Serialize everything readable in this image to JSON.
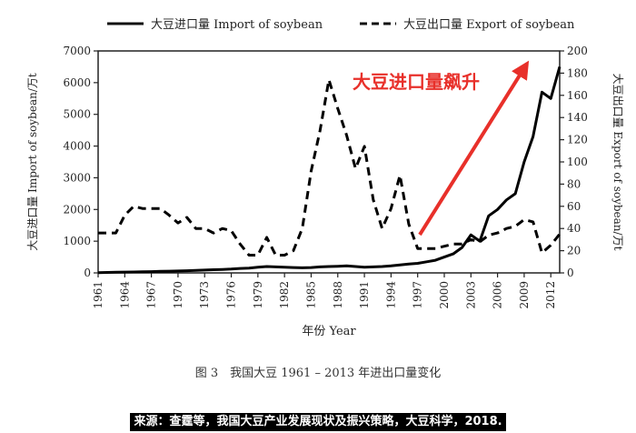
{
  "chart_data": {
    "type": "line",
    "title": "",
    "xlabel": "年份 Year",
    "ylabel_left": "大豆进口量 Import of soybean/万t",
    "ylabel_right": "大豆出口量 Export of soybean/万t",
    "ylim_left": [
      0,
      7000
    ],
    "ylim_right": [
      0,
      200
    ],
    "yticks_left": [
      0,
      1000,
      2000,
      3000,
      4000,
      5000,
      6000,
      7000
    ],
    "yticks_right": [
      0,
      20,
      40,
      60,
      80,
      100,
      120,
      140,
      160,
      180,
      200
    ],
    "xticks": [
      1961,
      1964,
      1967,
      1970,
      1973,
      1976,
      1979,
      1982,
      1985,
      1988,
      1991,
      1994,
      1997,
      2000,
      2003,
      2006,
      2009,
      2012
    ],
    "xlim": [
      1961,
      2013
    ],
    "legend_position": "top",
    "annotation": "大豆进口量飙升",
    "annotation_color": "#e8302a",
    "series": [
      {
        "name": "大豆进口量 Import of soybean",
        "axis": "left",
        "style": "solid",
        "x": [
          1961,
          1962,
          1963,
          1964,
          1965,
          1966,
          1967,
          1968,
          1969,
          1970,
          1971,
          1972,
          1973,
          1974,
          1975,
          1976,
          1977,
          1978,
          1979,
          1980,
          1981,
          1982,
          1983,
          1984,
          1985,
          1986,
          1987,
          1988,
          1989,
          1990,
          1991,
          1992,
          1993,
          1994,
          1995,
          1996,
          1997,
          1998,
          1999,
          2000,
          2001,
          2002,
          2003,
          2004,
          2005,
          2006,
          2007,
          2008,
          2009,
          2010,
          2011,
          2012,
          2013
        ],
        "values": [
          10,
          15,
          20,
          25,
          30,
          35,
          40,
          50,
          55,
          60,
          70,
          80,
          90,
          100,
          110,
          120,
          140,
          150,
          180,
          200,
          190,
          180,
          170,
          160,
          170,
          190,
          200,
          210,
          220,
          200,
          180,
          190,
          200,
          220,
          250,
          280,
          300,
          350,
          400,
          500,
          600,
          800,
          1200,
          1000,
          1800,
          2000,
          2300,
          2500,
          3500,
          4300,
          5700,
          5500,
          6500
        ]
      },
      {
        "name": "大豆出口量 Export of soybean",
        "axis": "right",
        "style": "dashed",
        "x": [
          1961,
          1962,
          1963,
          1964,
          1965,
          1966,
          1967,
          1968,
          1969,
          1970,
          1971,
          1972,
          1973,
          1974,
          1975,
          1976,
          1977,
          1978,
          1979,
          1980,
          1981,
          1982,
          1983,
          1984,
          1985,
          1986,
          1987,
          1988,
          1989,
          1990,
          1991,
          1992,
          1993,
          1994,
          1995,
          1996,
          1997,
          1998,
          1999,
          2000,
          2001,
          2002,
          2003,
          2004,
          2005,
          2006,
          2007,
          2008,
          2009,
          2010,
          2011,
          2012,
          2013
        ],
        "values": [
          36,
          36,
          36,
          52,
          60,
          58,
          58,
          58,
          52,
          45,
          50,
          40,
          40,
          36,
          40,
          38,
          26,
          16,
          16,
          32,
          16,
          16,
          20,
          40,
          92,
          128,
          174,
          148,
          124,
          94,
          114,
          66,
          40,
          58,
          88,
          44,
          22,
          22,
          22,
          24,
          26,
          26,
          30,
          28,
          34,
          36,
          40,
          42,
          48,
          46,
          18,
          25,
          35
        ]
      }
    ]
  },
  "figure_caption": "图 3　我国大豆 1961 – 2013 年进出口量变化",
  "source_caption": "来源：查霆等，我国大豆产业发展现状及振兴策略，大豆科学，2018."
}
